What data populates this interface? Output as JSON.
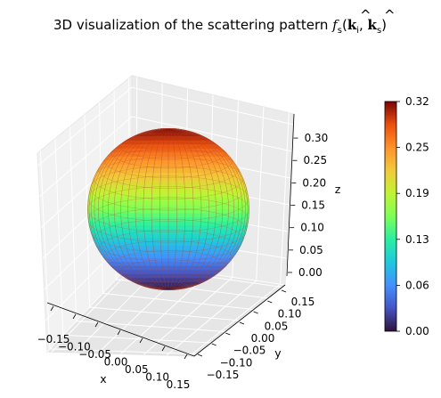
{
  "chart_data": {
    "type": "surface3d",
    "title_text": "3D visualization of the scattering pattern ",
    "title_math": {
      "f": "f",
      "f_sub": "s",
      "k": "k",
      "hat": "^",
      "k1_sub": "i",
      "k2_sub": "s",
      "open": "(",
      "comma": ", ",
      "close": ")"
    },
    "xlabel": "x",
    "ylabel": "y",
    "zlabel": "z",
    "x_ticks": [
      "−0.15",
      "−0.10",
      "−0.05",
      "0.00",
      "0.05",
      "0.10",
      "0.15"
    ],
    "y_ticks": [
      "−0.15",
      "−0.10",
      "−0.05",
      "0.00",
      "0.05",
      "0.10",
      "0.15"
    ],
    "z_ticks": [
      "0.00",
      "0.05",
      "0.10",
      "0.15",
      "0.20",
      "0.25",
      "0.30"
    ],
    "xlim": [
      -0.16,
      0.16
    ],
    "ylim": [
      -0.16,
      0.16
    ],
    "zlim": [
      0.0,
      0.32
    ],
    "surface": {
      "shape": "sphere",
      "center": [
        0.0,
        0.0,
        0.16
      ],
      "radius": 0.16
    },
    "colorbar": {
      "colormap": "turbo",
      "range": [
        0.0,
        0.32
      ],
      "ticks": [
        "0.00",
        "0.06",
        "0.13",
        "0.19",
        "0.25",
        "0.32"
      ],
      "tick_values": [
        0.0,
        0.064,
        0.128,
        0.192,
        0.256,
        0.32
      ]
    },
    "grid": true
  }
}
